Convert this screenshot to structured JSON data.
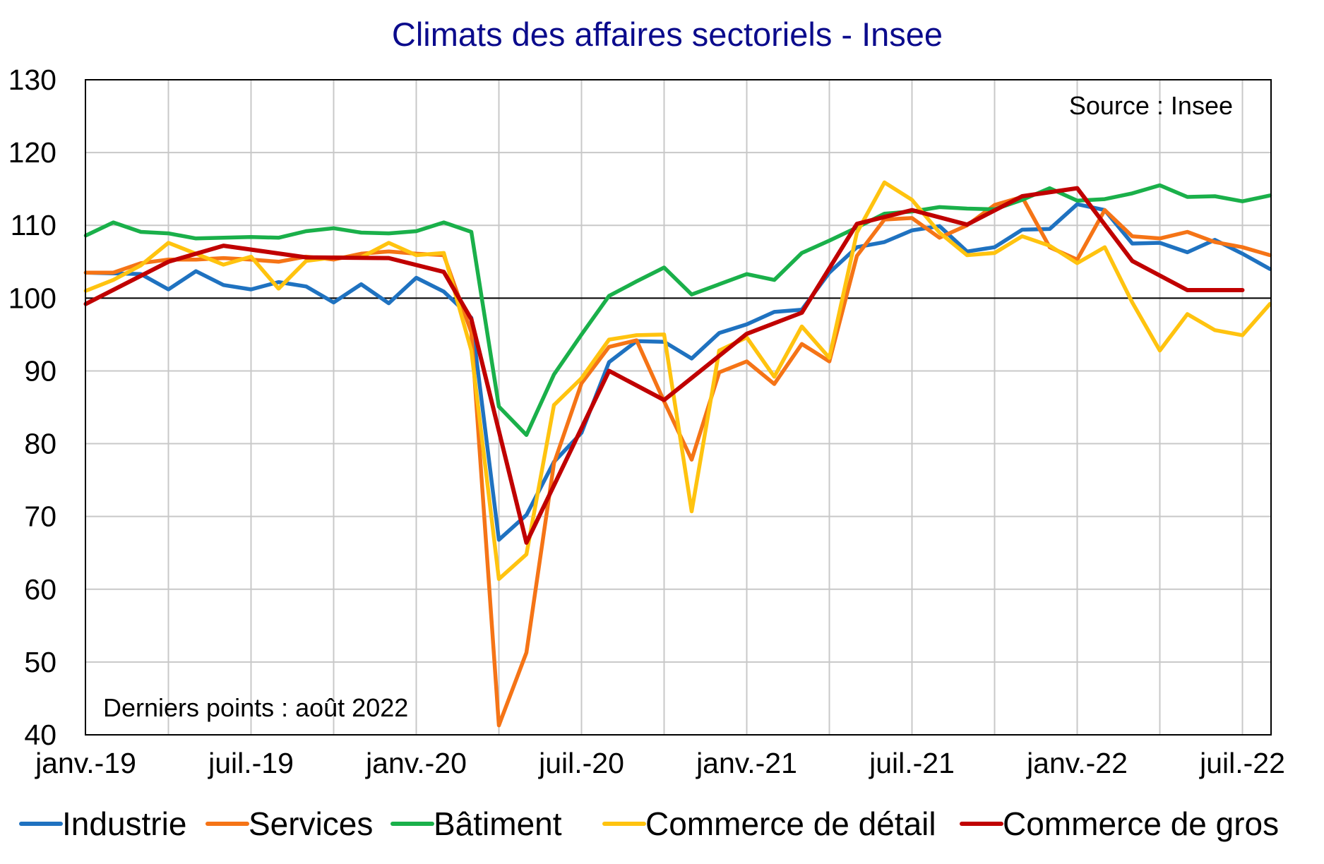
{
  "chart_data": {
    "type": "line",
    "title": "Climats des affaires sectoriels - Insee",
    "source_note": "Source : Insee",
    "last_points_note": "Derniers points : août 2022",
    "ylim": [
      40,
      130
    ],
    "yticks": [
      40,
      50,
      60,
      70,
      80,
      90,
      100,
      110,
      120,
      130
    ],
    "reference_line": 100,
    "grid": true,
    "legend_position": "bottom",
    "x": [
      "2019-01",
      "2019-02",
      "2019-03",
      "2019-04",
      "2019-05",
      "2019-06",
      "2019-07",
      "2019-08",
      "2019-09",
      "2019-10",
      "2019-11",
      "2019-12",
      "2020-01",
      "2020-02",
      "2020-03",
      "2020-04",
      "2020-05",
      "2020-06",
      "2020-07",
      "2020-08",
      "2020-09",
      "2020-10",
      "2020-11",
      "2020-12",
      "2021-01",
      "2021-02",
      "2021-03",
      "2021-04",
      "2021-05",
      "2021-06",
      "2021-07",
      "2021-08",
      "2021-09",
      "2021-10",
      "2021-11",
      "2021-12",
      "2022-01",
      "2022-02",
      "2022-03",
      "2022-04",
      "2022-05",
      "2022-06",
      "2022-07",
      "2022-08"
    ],
    "x_ticks": [
      {
        "x": "2019-01",
        "label": "janv.-19"
      },
      {
        "x": "2019-07",
        "label": "juil.-19"
      },
      {
        "x": "2020-01",
        "label": "janv.-20"
      },
      {
        "x": "2020-07",
        "label": "juil.-20"
      },
      {
        "x": "2021-01",
        "label": "janv.-21"
      },
      {
        "x": "2021-07",
        "label": "juil.-21"
      },
      {
        "x": "2022-01",
        "label": "janv.-22"
      },
      {
        "x": "2022-07",
        "label": "juil.-22"
      }
    ],
    "series": [
      {
        "name": "Industrie",
        "color": "#1f72c0",
        "quarterly": false,
        "values": [
          103.5,
          103.4,
          103.3,
          101.2,
          103.7,
          101.8,
          101.2,
          102.2,
          101.6,
          99.4,
          101.9,
          99.3,
          102.8,
          100.9,
          97.3,
          66.8,
          70.2,
          77.5,
          81.5,
          91.2,
          94.1,
          94.0,
          91.7,
          95.2,
          96.4,
          98.1,
          98.4,
          103.5,
          107.0,
          107.7,
          109.3,
          109.9,
          106.4,
          107.0,
          109.4,
          109.5,
          112.9,
          112.1,
          107.5,
          107.6,
          106.3,
          108.0,
          106.1,
          104.0
        ]
      },
      {
        "name": "Services",
        "color": "#f57416",
        "quarterly": false,
        "values": [
          103.5,
          103.5,
          104.8,
          105.3,
          105.3,
          105.5,
          105.3,
          105.0,
          105.7,
          105.3,
          106.1,
          106.4,
          106.1,
          105.9,
          95.3,
          41.3,
          51.3,
          77.3,
          88.3,
          93.3,
          94.2,
          85.8,
          77.8,
          89.8,
          91.3,
          88.2,
          93.7,
          91.3,
          105.8,
          110.8,
          111.0,
          108.3,
          110.0,
          112.8,
          113.9,
          107.0,
          105.3,
          112.1,
          108.5,
          108.2,
          109.1,
          107.7,
          107.0,
          105.9
        ]
      },
      {
        "name": "Bâtiment",
        "color": "#1ab04a",
        "quarterly": false,
        "values": [
          108.6,
          110.4,
          109.1,
          108.9,
          108.2,
          108.3,
          108.4,
          108.3,
          109.2,
          109.6,
          109.0,
          108.9,
          109.2,
          110.4,
          109.1,
          85.1,
          81.2,
          89.5,
          95.0,
          100.3,
          102.3,
          104.2,
          100.5,
          101.9,
          103.3,
          102.5,
          106.2,
          107.9,
          109.7,
          111.6,
          111.9,
          112.5,
          112.3,
          112.2,
          113.5,
          115.1,
          113.4,
          113.6,
          114.4,
          115.5,
          113.9,
          114.0,
          113.3,
          114.1
        ]
      },
      {
        "name": "Commerce de détail",
        "color": "#ffc30f",
        "quarterly": false,
        "values": [
          101.0,
          102.5,
          104.5,
          107.6,
          106.1,
          104.6,
          105.7,
          101.3,
          105.1,
          105.6,
          105.6,
          107.6,
          105.9,
          106.2,
          92.8,
          61.4,
          64.8,
          85.3,
          89.0,
          94.3,
          94.9,
          95.0,
          70.7,
          92.8,
          94.6,
          89.2,
          96.1,
          91.8,
          109.0,
          115.9,
          113.5,
          109.0,
          105.9,
          106.2,
          108.5,
          107.2,
          104.8,
          107.0,
          99.4,
          92.8,
          97.8,
          95.6,
          94.9,
          99.2
        ]
      },
      {
        "name": "Commerce de gros",
        "color": "#c00000",
        "quarterly": true,
        "values": [
          99.2,
          null,
          null,
          105.0,
          null,
          107.2,
          null,
          null,
          105.6,
          null,
          null,
          105.5,
          null,
          103.6,
          97.1,
          null,
          66.4,
          null,
          null,
          90.0,
          null,
          86.0,
          null,
          null,
          95.1,
          null,
          98.0,
          null,
          110.2,
          null,
          112.1,
          null,
          110.1,
          null,
          114.0,
          null,
          115.1,
          null,
          105.1,
          null,
          101.1,
          null,
          101.1,
          null
        ]
      }
    ]
  }
}
